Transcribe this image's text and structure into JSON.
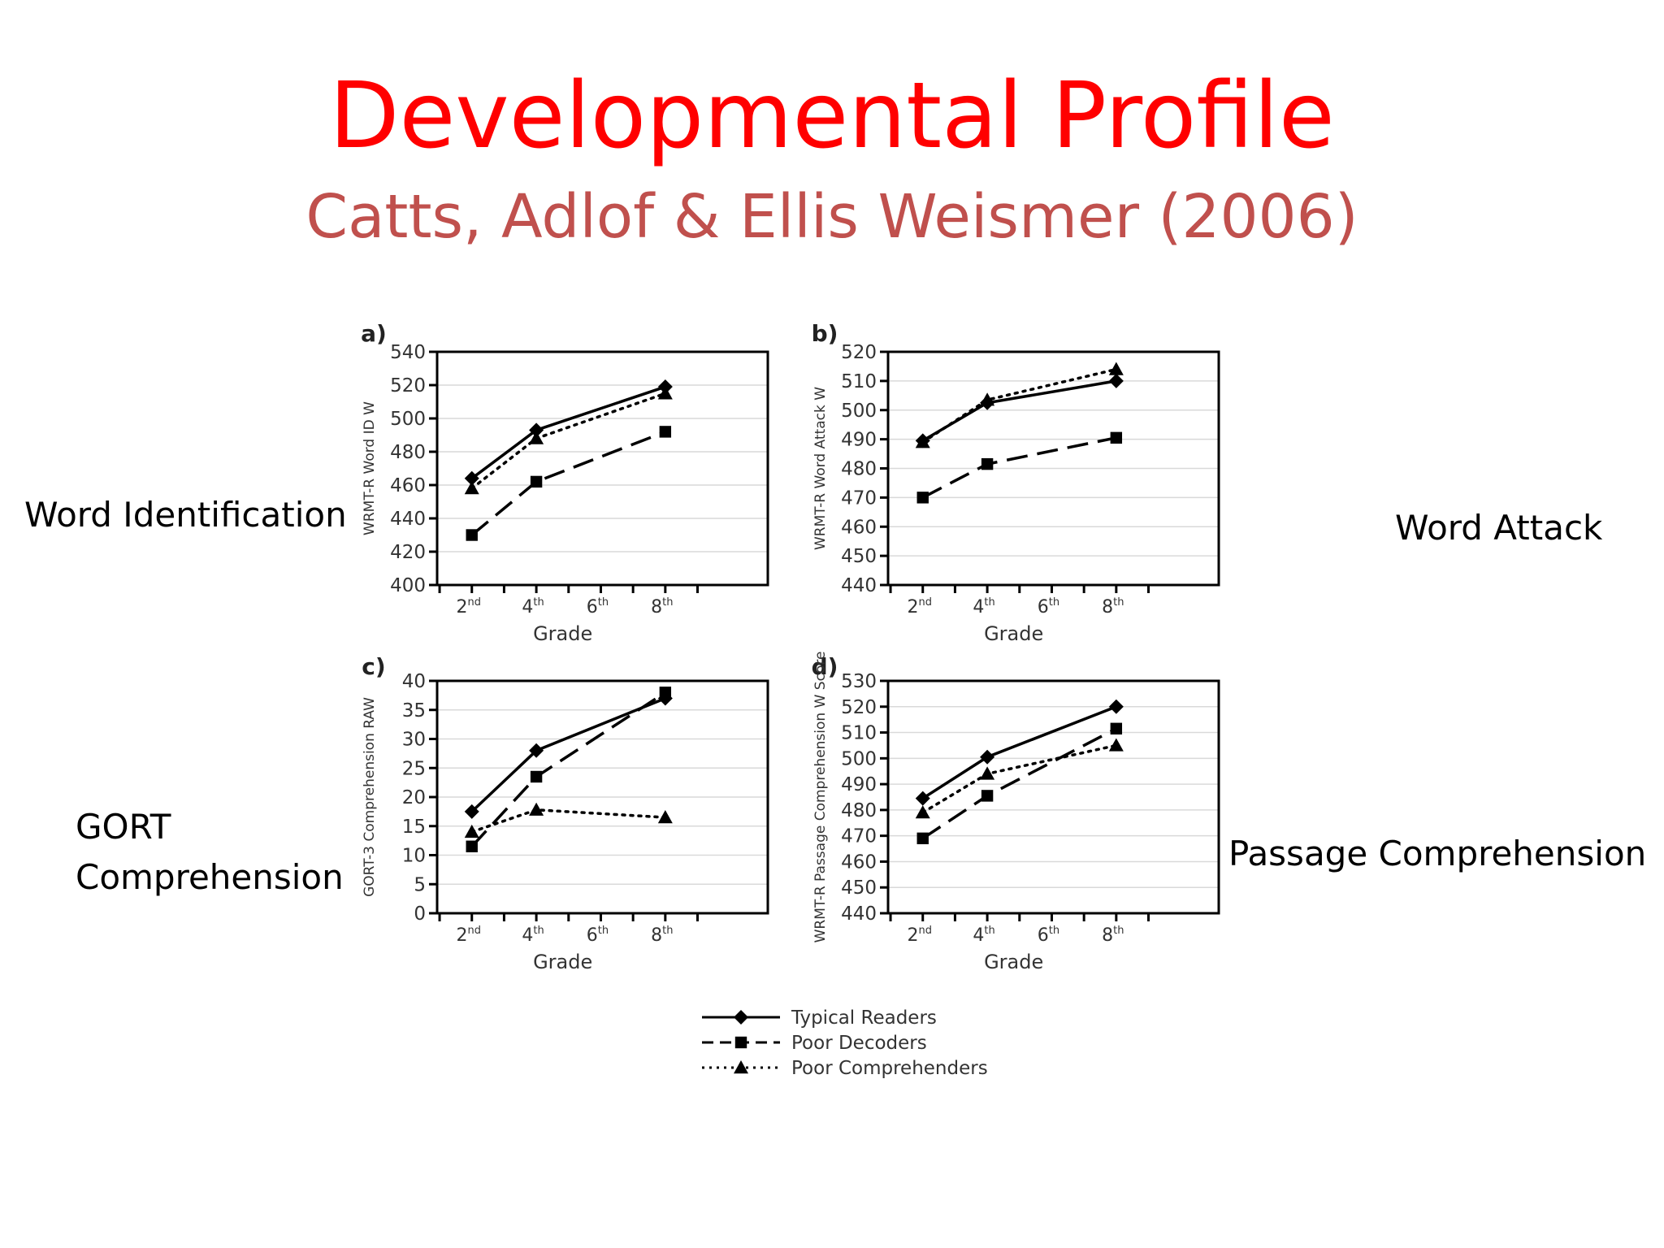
{
  "slide": {
    "title": "Developmental Profile",
    "subtitle": "Catts, Adlof & Ellis Weismer (2006)",
    "side_labels": {
      "word_identification": "Word Identification",
      "word_attack": "Word Attack",
      "gort_line1": "GORT",
      "gort_line2": "Comprehension",
      "passage_comprehension": "Passage Comprehension"
    }
  },
  "colors": {
    "title": "#ff0000",
    "subtitle": "#c0504d",
    "lines": "#000000",
    "grid": "#d9d9d9"
  },
  "legend": [
    {
      "label": "Typical Readers",
      "marker": "diamond",
      "dash": "solid"
    },
    {
      "label": "Poor Decoders",
      "marker": "square",
      "dash": "dashed"
    },
    {
      "label": "Poor Comprehenders",
      "marker": "triangle",
      "dash": "dotted"
    }
  ],
  "chart_data": [
    {
      "panel": "a)",
      "type": "line",
      "xlabel": "Grade",
      "ylabel": "WRMT-R Word ID W",
      "x_ticks": [
        {
          "base": "2",
          "sup": "nd"
        },
        {
          "base": "4",
          "sup": "th"
        },
        {
          "base": "6",
          "sup": "th"
        },
        {
          "base": "8",
          "sup": "th"
        }
      ],
      "ylim": [
        400,
        540
      ],
      "y_ticks": [
        400,
        420,
        440,
        460,
        480,
        500,
        520,
        540
      ],
      "grid": true,
      "series": [
        {
          "name": "Typical Readers",
          "x": [
            2,
            4,
            8
          ],
          "y": [
            464,
            493,
            519
          ]
        },
        {
          "name": "Poor Decoders",
          "x": [
            2,
            4,
            8
          ],
          "y": [
            430,
            462,
            492
          ]
        },
        {
          "name": "Poor Comprehenders",
          "x": [
            2,
            4,
            8
          ],
          "y": [
            458,
            488,
            515
          ]
        }
      ]
    },
    {
      "panel": "b)",
      "type": "line",
      "xlabel": "Grade",
      "ylabel": "WRMT-R Word Attack W",
      "x_ticks": [
        {
          "base": "2",
          "sup": "nd"
        },
        {
          "base": "4",
          "sup": "th"
        },
        {
          "base": "6",
          "sup": "th"
        },
        {
          "base": "8",
          "sup": "th"
        }
      ],
      "ylim": [
        440,
        520
      ],
      "y_ticks": [
        440,
        450,
        460,
        470,
        480,
        490,
        500,
        510,
        520
      ],
      "grid": true,
      "series": [
        {
          "name": "Typical Readers",
          "x": [
            2,
            4,
            8
          ],
          "y": [
            489.5,
            502.5,
            510
          ]
        },
        {
          "name": "Poor Decoders",
          "x": [
            2,
            4,
            8
          ],
          "y": [
            470,
            481.5,
            490.5
          ]
        },
        {
          "name": "Poor Comprehenders",
          "x": [
            2,
            4,
            8
          ],
          "y": [
            489,
            503.5,
            514
          ]
        }
      ]
    },
    {
      "panel": "c)",
      "type": "line",
      "xlabel": "Grade",
      "ylabel": "GORT-3 Comprehension RAW",
      "x_ticks": [
        {
          "base": "2",
          "sup": "nd"
        },
        {
          "base": "4",
          "sup": "th"
        },
        {
          "base": "6",
          "sup": "th"
        },
        {
          "base": "8",
          "sup": "th"
        }
      ],
      "ylim": [
        0,
        40
      ],
      "y_ticks": [
        0,
        5,
        10,
        15,
        20,
        25,
        30,
        35,
        40
      ],
      "grid": true,
      "series": [
        {
          "name": "Typical Readers",
          "x": [
            2,
            4,
            8
          ],
          "y": [
            17.5,
            28,
            37
          ]
        },
        {
          "name": "Poor Decoders",
          "x": [
            2,
            4,
            8
          ],
          "y": [
            11.5,
            23.5,
            38
          ]
        },
        {
          "name": "Poor Comprehenders",
          "x": [
            2,
            4,
            8
          ],
          "y": [
            14,
            17.8,
            16.5
          ]
        }
      ]
    },
    {
      "panel": "d)",
      "type": "line",
      "xlabel": "Grade",
      "ylabel": "WRMT-R Passage Comprehension W Score",
      "x_ticks": [
        {
          "base": "2",
          "sup": "nd"
        },
        {
          "base": "4",
          "sup": "th"
        },
        {
          "base": "6",
          "sup": "th"
        },
        {
          "base": "8",
          "sup": "th"
        }
      ],
      "ylim": [
        440,
        530
      ],
      "y_ticks": [
        440,
        450,
        460,
        470,
        480,
        490,
        500,
        510,
        520,
        530
      ],
      "grid": true,
      "series": [
        {
          "name": "Typical Readers",
          "x": [
            2,
            4,
            8
          ],
          "y": [
            484.5,
            500.5,
            520
          ]
        },
        {
          "name": "Poor Decoders",
          "x": [
            2,
            4,
            8
          ],
          "y": [
            469,
            485.5,
            511.5
          ]
        },
        {
          "name": "Poor Comprehenders",
          "x": [
            2,
            4,
            8
          ],
          "y": [
            479,
            494,
            505
          ]
        }
      ]
    }
  ]
}
